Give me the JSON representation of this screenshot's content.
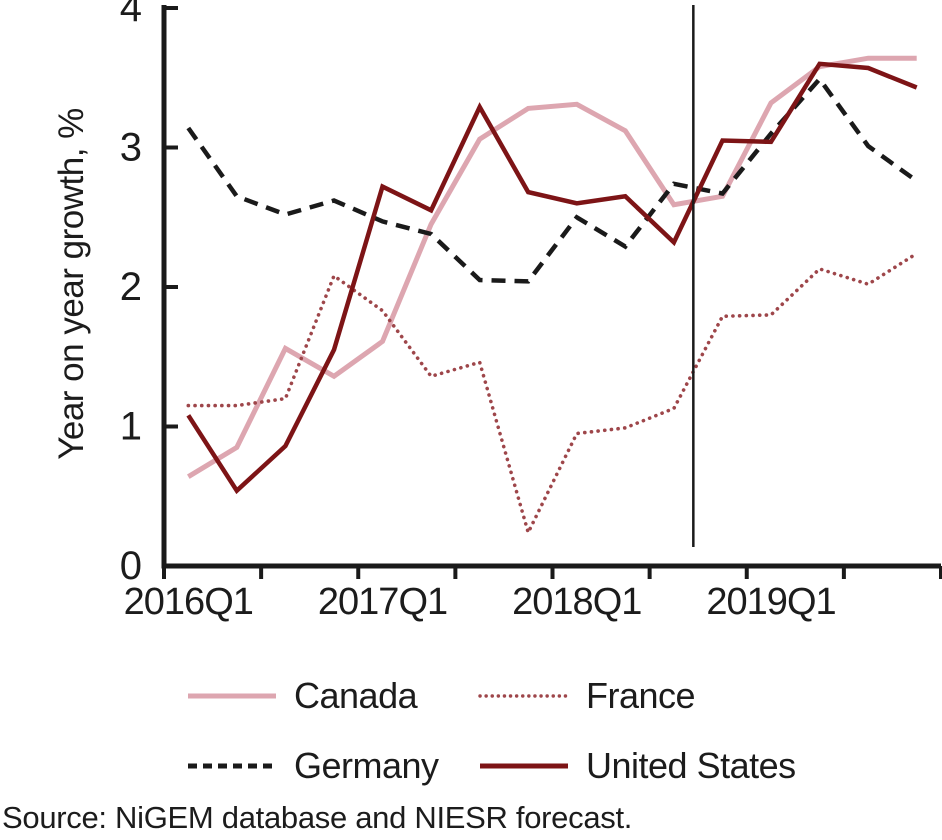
{
  "figure": {
    "source": "Source: NiGEM database and NIESR forecast.",
    "colors": {
      "canada": "#DDA6B0",
      "france": "#9E464A",
      "germany": "#1A1A1A",
      "united_states": "#7D1416",
      "axis": "#1A1A1A",
      "forecast_divider": "#1A1A1A"
    }
  },
  "chart_data": {
    "type": "line",
    "title": "",
    "xlabel": "",
    "ylabel": "Year on year growth, %",
    "ylim": [
      0,
      4
    ],
    "y_ticks": [
      0,
      1,
      2,
      3,
      4
    ],
    "grid": false,
    "legend_position": "bottom",
    "categories": [
      "2016Q1",
      "2016Q2",
      "2016Q3",
      "2016Q4",
      "2017Q1",
      "2017Q2",
      "2017Q3",
      "2017Q4",
      "2018Q1",
      "2018Q2",
      "2018Q3",
      "2018Q4",
      "2019Q1",
      "2019Q2",
      "2019Q3",
      "2019Q4"
    ],
    "x_ticks": [
      {
        "label": "2016Q1",
        "category_index": 0
      },
      {
        "label": "2017Q1",
        "category_index": 4
      },
      {
        "label": "2018Q1",
        "category_index": 8
      },
      {
        "label": "2019Q1",
        "category_index": 12
      }
    ],
    "forecast_divider_x_index": 10.4,
    "series": [
      {
        "name": "Canada",
        "style": "solid",
        "color": "#DDA6B0",
        "stroke_width": 5,
        "values": [
          0.64,
          0.85,
          1.56,
          1.36,
          1.61,
          2.45,
          3.06,
          3.28,
          3.31,
          3.12,
          2.59,
          2.65,
          3.32,
          3.58,
          3.64,
          3.64
        ]
      },
      {
        "name": "France",
        "style": "dotted",
        "color": "#9E464A",
        "stroke_width": 3.6,
        "values": [
          1.15,
          1.15,
          1.2,
          2.08,
          1.83,
          1.36,
          1.46,
          0.24,
          0.95,
          0.99,
          1.13,
          1.79,
          1.8,
          2.13,
          2.02,
          2.24
        ]
      },
      {
        "name": "Germany",
        "style": "dashed",
        "color": "#1A1A1A",
        "stroke_width": 4.5,
        "values": [
          3.14,
          2.65,
          2.52,
          2.62,
          2.47,
          2.38,
          2.05,
          2.04,
          2.5,
          2.29,
          2.74,
          2.67,
          3.1,
          3.49,
          3.01,
          2.76
        ]
      },
      {
        "name": "United States",
        "style": "solid",
        "color": "#7D1416",
        "stroke_width": 4.5,
        "values": [
          1.08,
          0.54,
          0.86,
          1.55,
          2.72,
          2.55,
          3.29,
          2.68,
          2.6,
          2.65,
          2.32,
          3.05,
          3.04,
          3.6,
          3.57,
          3.43
        ]
      }
    ]
  }
}
